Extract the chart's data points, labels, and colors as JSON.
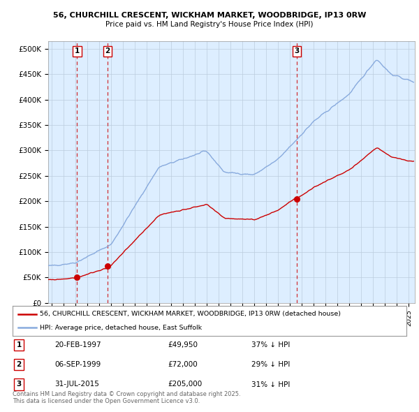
{
  "title1": "56, CHURCHILL CRESCENT, WICKHAM MARKET, WOODBRIDGE, IP13 0RW",
  "title2": "Price paid vs. HM Land Registry's House Price Index (HPI)",
  "ylabel_ticks": [
    "£0",
    "£50K",
    "£100K",
    "£150K",
    "£200K",
    "£250K",
    "£300K",
    "£350K",
    "£400K",
    "£450K",
    "£500K"
  ],
  "ytick_vals": [
    0,
    50000,
    100000,
    150000,
    200000,
    250000,
    300000,
    350000,
    400000,
    450000,
    500000
  ],
  "xlim_start": 1994.7,
  "xlim_end": 2025.5,
  "ylim_min": 0,
  "ylim_max": 515000,
  "sale_dates": [
    1997.13,
    1999.68,
    2015.58
  ],
  "sale_prices": [
    49950,
    72000,
    205000
  ],
  "sale_labels": [
    "1",
    "2",
    "3"
  ],
  "legend_line1": "56, CHURCHILL CRESCENT, WICKHAM MARKET, WOODBRIDGE, IP13 0RW (detached house)",
  "legend_line2": "HPI: Average price, detached house, East Suffolk",
  "table_rows": [
    [
      "1",
      "20-FEB-1997",
      "£49,950",
      "37% ↓ HPI"
    ],
    [
      "2",
      "06-SEP-1999",
      "£72,000",
      "29% ↓ HPI"
    ],
    [
      "3",
      "31-JUL-2015",
      "£205,000",
      "31% ↓ HPI"
    ]
  ],
  "footnote": "Contains HM Land Registry data © Crown copyright and database right 2025.\nThis data is licensed under the Open Government Licence v3.0.",
  "line_color_red": "#cc0000",
  "line_color_blue": "#88aadd",
  "bg_color": "#ddeeff",
  "plot_bg": "#ffffff",
  "grid_color": "#bbccdd",
  "dashed_color": "#cc0000"
}
